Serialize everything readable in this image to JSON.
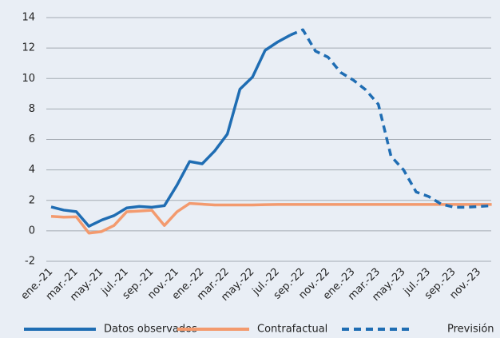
{
  "chart_data": {
    "type": "line",
    "categories": [
      "ene.-21",
      null,
      "mar.-21",
      null,
      "may.-21",
      null,
      "jul.-21",
      null,
      "sep.-21",
      null,
      "nov.-21",
      null,
      "ene.-22",
      null,
      "mar.-22",
      null,
      "may.-22",
      null,
      "jul.-22",
      null,
      "sep.-22",
      null,
      "nov.-22",
      null,
      "ene.-23",
      null,
      "mar.-23",
      null,
      "may.-23",
      null,
      "jul.-23",
      null,
      "sep.-23",
      null,
      "nov.-23",
      null
    ],
    "series": [
      {
        "name": "Datos observados",
        "color": "#1f6db3",
        "style": "solid",
        "values": [
          1.57,
          1.36,
          1.26,
          0.3,
          0.7,
          1.0,
          1.5,
          1.6,
          1.55,
          1.65,
          3.0,
          4.55,
          4.4,
          5.25,
          6.35,
          9.3,
          10.1,
          11.85,
          12.4,
          12.85,
          null,
          null,
          null,
          null,
          null,
          null,
          null,
          null,
          null,
          null,
          null,
          null,
          null,
          null,
          null,
          null
        ]
      },
      {
        "name": "Contrafactual",
        "color": "#f39a6e",
        "style": "solid",
        "values": [
          0.95,
          0.9,
          0.92,
          -0.15,
          -0.05,
          0.35,
          1.25,
          1.3,
          1.35,
          0.35,
          1.25,
          1.8,
          1.75,
          1.7,
          1.7,
          1.7,
          1.7,
          1.72,
          1.73,
          1.73,
          1.73,
          1.73,
          1.73,
          1.73,
          1.73,
          1.73,
          1.73,
          1.73,
          1.73,
          1.73,
          1.73,
          1.73,
          1.73,
          1.73,
          1.73,
          1.73
        ]
      },
      {
        "name": "Previsión",
        "color": "#1f6db3",
        "style": "dashed",
        "values": [
          null,
          null,
          null,
          null,
          null,
          null,
          null,
          null,
          null,
          null,
          null,
          null,
          null,
          null,
          null,
          null,
          null,
          null,
          null,
          12.85,
          13.2,
          11.8,
          11.4,
          10.4,
          9.9,
          9.25,
          8.3,
          4.9,
          4.0,
          2.55,
          2.25,
          1.75,
          1.55,
          1.55,
          1.6,
          1.65
        ]
      }
    ],
    "ylim": [
      -2,
      14
    ],
    "yticks": [
      -2,
      0,
      2,
      4,
      6,
      8,
      10,
      12,
      14
    ],
    "grid": true,
    "legend": "bottom"
  }
}
